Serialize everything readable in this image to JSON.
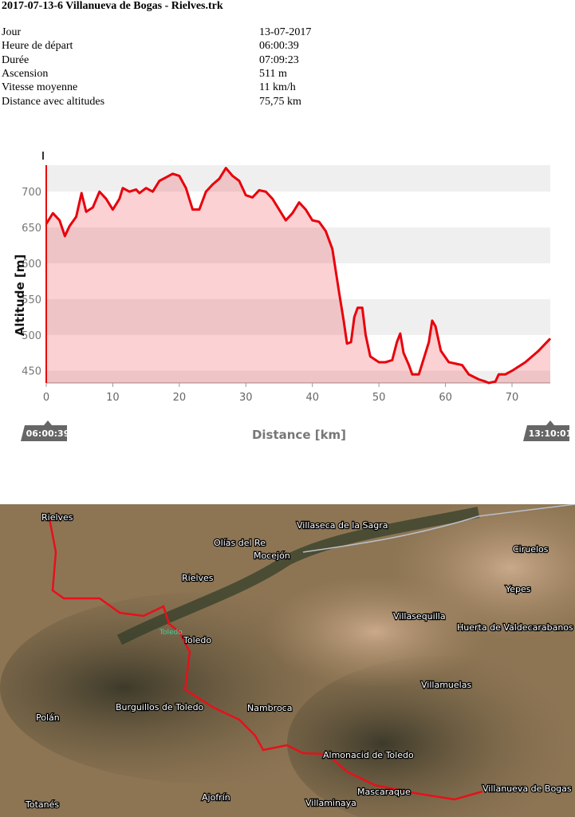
{
  "title": "2017-07-13-6 Villanueva de Bogas - Rielves.trk",
  "info": {
    "rows": [
      [
        "Jour",
        "13-07-2017"
      ],
      [
        "Heure de départ",
        "06:00:39"
      ],
      [
        "Durée",
        "07:09:23"
      ],
      [
        "Ascension",
        "511 m"
      ],
      [
        "Vitesse moyenne",
        "11 km/h"
      ],
      [
        "Distance avec altitudes",
        "75,75 km"
      ]
    ]
  },
  "chart_data": {
    "type": "area",
    "x_label": "Distance [km]",
    "y_label": "Altitude [m]",
    "start_label": "06:00:39",
    "end_label": "13:10:01",
    "color": "#e8000b",
    "x": [
      0,
      1,
      2,
      2.8,
      3.5,
      4.5,
      5.3,
      6,
      7,
      8,
      9,
      10,
      11,
      11.5,
      12.5,
      13.5,
      14,
      15,
      16,
      17,
      18,
      19,
      20,
      21,
      22,
      23,
      24,
      25,
      26,
      27,
      28,
      29,
      30,
      31,
      32,
      33,
      34,
      35,
      36,
      37,
      38,
      39,
      40,
      41,
      42,
      43,
      44,
      44.7,
      45.2,
      45.8,
      46.3,
      46.8,
      47.5,
      48,
      48.7,
      50,
      51,
      52,
      52.7,
      53.2,
      53.7,
      54.5,
      55,
      56,
      56.5,
      57.5,
      58,
      58.5,
      59.3,
      60.5,
      61.5,
      62.5,
      63.5,
      65,
      66,
      66.5,
      67.5,
      68,
      69,
      70,
      72,
      74,
      75.75
    ],
    "values": [
      655,
      670,
      660,
      638,
      652,
      665,
      698,
      672,
      678,
      700,
      690,
      675,
      690,
      705,
      700,
      703,
      698,
      705,
      700,
      715,
      720,
      725,
      722,
      705,
      675,
      675,
      700,
      710,
      718,
      733,
      722,
      715,
      695,
      692,
      702,
      700,
      690,
      675,
      660,
      670,
      685,
      675,
      660,
      658,
      645,
      620,
      560,
      520,
      488,
      490,
      525,
      538,
      538,
      500,
      470,
      462,
      462,
      465,
      490,
      502,
      475,
      458,
      445,
      445,
      460,
      490,
      520,
      512,
      478,
      462,
      460,
      458,
      445,
      438,
      435,
      433,
      435,
      445,
      445,
      450,
      462,
      478,
      495
    ],
    "xlim": [
      0,
      75.75
    ],
    "ylim": [
      433,
      737
    ],
    "xticks": [
      0,
      10,
      20,
      30,
      40,
      50,
      60,
      70
    ],
    "yticks": [
      450,
      500,
      550,
      600,
      650,
      700
    ],
    "grid": true
  },
  "map": {
    "labels": [
      "Rielves",
      "Olías del Re",
      "Mocejón",
      "Villaseca de la Sagra",
      "Ciruelos",
      "Rielves",
      "Yepes",
      "Villasequilla",
      "Huerta de Valdecarabanos",
      "Toledo",
      "Toledo",
      "Villamuelas",
      "Burguillos de Toledo",
      "Nambroca",
      "Polán",
      "Almonacid de Toledo",
      "Villanueva de Bogas",
      "Totanés",
      "Ajofrín",
      "Villaminaya",
      "Mascaraque"
    ]
  }
}
